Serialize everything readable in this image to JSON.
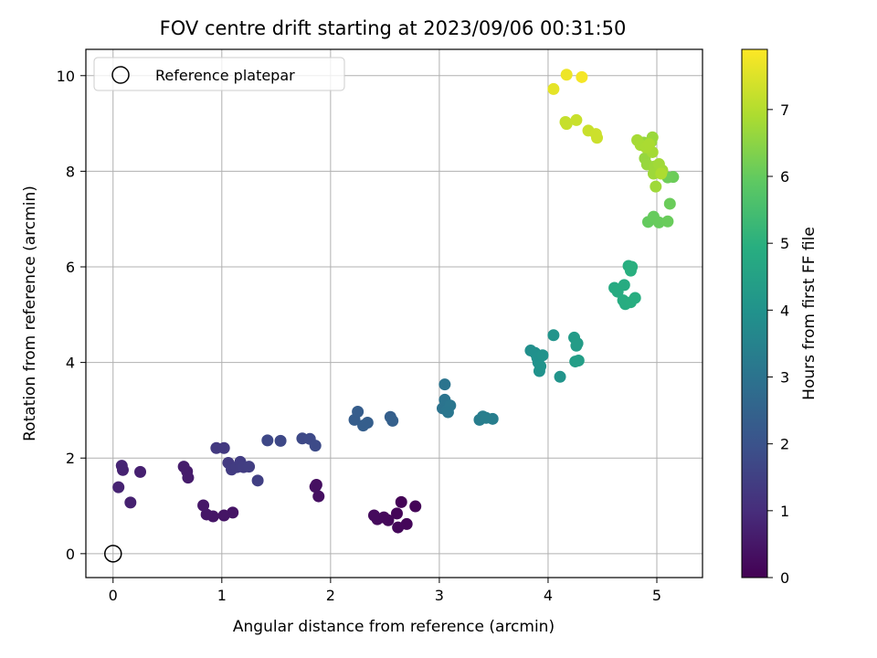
{
  "chart_data": {
    "type": "scatter",
    "title": "FOV centre drift starting at 2023/09/06 00:31:50",
    "xlabel": "Angular distance from reference (arcmin)",
    "ylabel": "Rotation from reference (arcmin)",
    "xlim": [
      -0.25,
      5.42
    ],
    "ylim": [
      -0.5,
      10.55
    ],
    "xticks": [
      "0",
      "1",
      "2",
      "3",
      "4",
      "5"
    ],
    "yticks": [
      "0",
      "2",
      "4",
      "6",
      "8",
      "10"
    ],
    "grid": true,
    "legend": {
      "position": "top-left",
      "label": "Reference platepar"
    },
    "reference_point": {
      "x": 0,
      "y": 0
    },
    "colorbar": {
      "label": "Hours from first FF file",
      "range": [
        0,
        7.9
      ],
      "ticks": [
        "0",
        "1",
        "2",
        "3",
        "4",
        "5",
        "6",
        "7"
      ],
      "colormap": "viridis"
    },
    "points": [
      [
        2.65,
        1.08,
        0.05
      ],
      [
        2.78,
        0.99,
        0.08
      ],
      [
        2.61,
        0.84,
        0.1
      ],
      [
        2.7,
        0.62,
        0.12
      ],
      [
        2.62,
        0.55,
        0.14
      ],
      [
        2.53,
        0.7,
        0.16
      ],
      [
        2.49,
        0.76,
        0.18
      ],
      [
        2.43,
        0.72,
        0.2
      ],
      [
        2.4,
        0.8,
        0.22
      ],
      [
        1.87,
        1.44,
        0.3
      ],
      [
        1.89,
        1.2,
        0.32
      ],
      [
        1.86,
        1.4,
        0.34
      ],
      [
        1.1,
        0.86,
        0.42
      ],
      [
        1.02,
        0.8,
        0.44
      ],
      [
        0.92,
        0.78,
        0.46
      ],
      [
        0.86,
        0.82,
        0.48
      ],
      [
        0.83,
        1.01,
        0.5
      ],
      [
        0.68,
        1.72,
        0.58
      ],
      [
        0.69,
        1.59,
        0.6
      ],
      [
        0.65,
        1.82,
        0.62
      ],
      [
        0.25,
        1.71,
        0.7
      ],
      [
        0.16,
        1.07,
        0.72
      ],
      [
        0.09,
        1.75,
        0.74
      ],
      [
        0.05,
        1.39,
        0.76
      ],
      [
        0.08,
        1.84,
        0.78
      ],
      [
        0.95,
        2.21,
        1.3
      ],
      [
        1.02,
        2.21,
        1.32
      ],
      [
        1.06,
        1.9,
        1.34
      ],
      [
        1.09,
        1.76,
        1.36
      ],
      [
        1.14,
        1.81,
        1.38
      ],
      [
        1.17,
        1.92,
        1.4
      ],
      [
        1.2,
        1.81,
        1.42
      ],
      [
        1.25,
        1.82,
        1.44
      ],
      [
        1.33,
        1.53,
        1.46
      ],
      [
        1.42,
        2.37,
        1.7
      ],
      [
        1.54,
        2.36,
        1.72
      ],
      [
        1.74,
        2.41,
        1.74
      ],
      [
        1.81,
        2.4,
        1.76
      ],
      [
        1.86,
        2.26,
        1.78
      ],
      [
        2.22,
        2.8,
        2.3
      ],
      [
        2.25,
        2.97,
        2.32
      ],
      [
        2.3,
        2.68,
        2.34
      ],
      [
        2.34,
        2.74,
        2.36
      ],
      [
        2.55,
        2.86,
        2.38
      ],
      [
        2.57,
        2.78,
        2.4
      ],
      [
        3.03,
        3.04,
        3.0
      ],
      [
        3.05,
        3.54,
        3.02
      ],
      [
        3.05,
        3.22,
        3.04
      ],
      [
        3.07,
        3.0,
        3.06
      ],
      [
        3.1,
        3.1,
        3.08
      ],
      [
        3.08,
        2.96,
        3.1
      ],
      [
        3.37,
        2.8,
        3.3
      ],
      [
        3.4,
        2.87,
        3.32
      ],
      [
        3.43,
        2.84,
        3.34
      ],
      [
        3.49,
        2.82,
        3.36
      ],
      [
        3.84,
        4.25,
        3.9
      ],
      [
        3.88,
        4.2,
        3.92
      ],
      [
        3.9,
        4.1,
        3.94
      ],
      [
        3.91,
        4.0,
        3.96
      ],
      [
        3.92,
        3.82,
        3.98
      ],
      [
        3.95,
        4.15,
        4.0
      ],
      [
        3.93,
        3.92,
        4.02
      ],
      [
        4.05,
        4.57,
        4.04
      ],
      [
        4.11,
        3.7,
        4.06
      ],
      [
        4.24,
        4.52,
        4.3
      ],
      [
        4.26,
        4.35,
        4.32
      ],
      [
        4.27,
        4.4,
        4.34
      ],
      [
        4.25,
        4.02,
        4.36
      ],
      [
        4.28,
        4.04,
        4.38
      ],
      [
        4.61,
        5.56,
        4.8
      ],
      [
        4.64,
        5.48,
        4.82
      ],
      [
        4.7,
        5.62,
        4.84
      ],
      [
        4.69,
        5.3,
        4.86
      ],
      [
        4.71,
        5.22,
        4.88
      ],
      [
        4.76,
        5.26,
        4.9
      ],
      [
        4.8,
        5.35,
        4.92
      ],
      [
        4.74,
        6.02,
        4.94
      ],
      [
        4.76,
        5.92,
        4.96
      ],
      [
        4.77,
        6.0,
        4.98
      ],
      [
        4.92,
        6.94,
        6.0
      ],
      [
        4.97,
        7.05,
        6.02
      ],
      [
        5.02,
        6.93,
        6.04
      ],
      [
        5.1,
        6.95,
        6.06
      ],
      [
        5.12,
        7.32,
        6.08
      ],
      [
        5.15,
        7.88,
        6.1
      ],
      [
        5.1,
        7.87,
        6.12
      ],
      [
        4.88,
        8.6,
        6.6
      ],
      [
        4.89,
        8.27,
        6.62
      ],
      [
        4.91,
        8.14,
        6.64
      ],
      [
        4.95,
        8.62,
        6.66
      ],
      [
        4.96,
        8.71,
        6.68
      ],
      [
        4.98,
        8.1,
        6.7
      ],
      [
        4.97,
        7.95,
        6.72
      ],
      [
        4.99,
        7.68,
        6.74
      ],
      [
        5.02,
        8.15,
        6.76
      ],
      [
        5.05,
        8.02,
        6.78
      ],
      [
        4.96,
        8.4,
        6.8
      ],
      [
        4.82,
        8.65,
        6.82
      ],
      [
        4.85,
        8.55,
        6.84
      ],
      [
        4.9,
        8.5,
        6.86
      ],
      [
        4.93,
        8.57,
        6.88
      ],
      [
        5.04,
        7.95,
        6.9
      ],
      [
        4.16,
        9.03,
        7.2
      ],
      [
        4.17,
        8.99,
        7.22
      ],
      [
        4.26,
        9.07,
        7.24
      ],
      [
        4.37,
        8.85,
        7.26
      ],
      [
        4.45,
        8.7,
        7.28
      ],
      [
        4.44,
        8.78,
        7.3
      ],
      [
        4.05,
        9.72,
        7.6
      ],
      [
        4.17,
        10.02,
        7.7
      ],
      [
        4.31,
        9.97,
        7.8
      ]
    ]
  }
}
